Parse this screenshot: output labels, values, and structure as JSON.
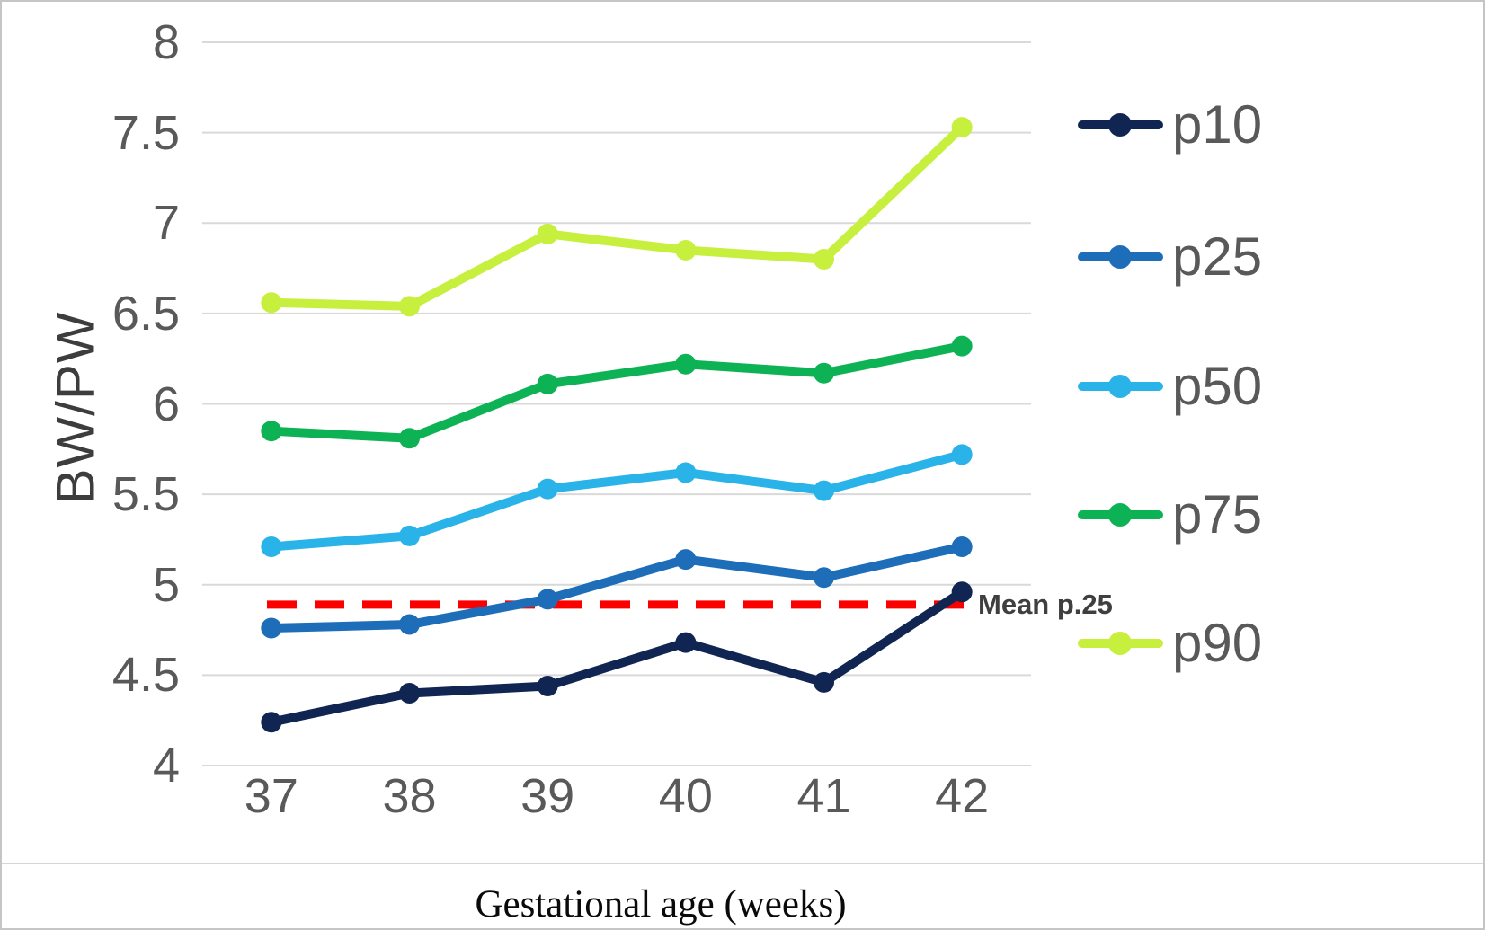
{
  "chart_data": {
    "type": "line",
    "xlabel": "Gestational age (weeks)",
    "ylabel": "BW/PW",
    "x": [
      37,
      38,
      39,
      40,
      41,
      42
    ],
    "ylim": [
      4,
      8
    ],
    "ytick_step": 0.5,
    "y_ticks": [
      "8",
      "7.5",
      "7",
      "6.5",
      "6",
      "5.5",
      "5",
      "4.5",
      "4"
    ],
    "grid": true,
    "legend_position": "right-outside",
    "series": [
      {
        "name": "p10",
        "color": "#102552",
        "values": [
          4.24,
          4.4,
          4.44,
          4.68,
          4.46,
          4.96
        ]
      },
      {
        "name": "p25",
        "color": "#1e6db8",
        "values": [
          4.76,
          4.78,
          4.92,
          5.14,
          5.04,
          5.21
        ]
      },
      {
        "name": "p50",
        "color": "#29b3e9",
        "values": [
          5.21,
          5.27,
          5.53,
          5.62,
          5.52,
          5.72
        ]
      },
      {
        "name": "p75",
        "color": "#0db254",
        "values": [
          5.85,
          5.81,
          6.11,
          6.22,
          6.17,
          6.32
        ]
      },
      {
        "name": "p90",
        "color": "#c7ef3e",
        "values": [
          6.56,
          6.54,
          6.94,
          6.85,
          6.8,
          7.53
        ]
      }
    ],
    "reference_line": {
      "label": "Mean p.25",
      "value": 4.89,
      "color": "#fc0000",
      "style": "dashed"
    }
  },
  "styles": {
    "grid_color": "#d9d9d9",
    "tick_color": "#595959",
    "axis_title_color": "#3d3d3d",
    "ref_label_color": "#3f3f3f",
    "background": "#ffffff"
  },
  "legend": {
    "items": [
      "p10",
      "p25",
      "p50",
      "p75",
      "p90"
    ]
  }
}
